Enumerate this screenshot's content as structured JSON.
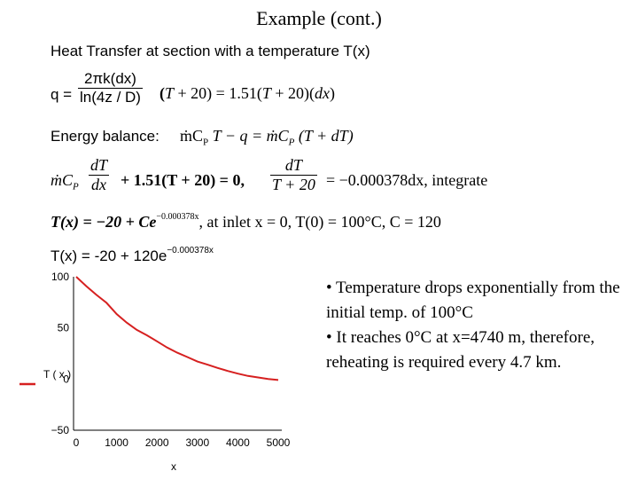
{
  "slide": {
    "title": "Example (cont.)",
    "heading": "Heat Transfer at section with a temperature T(x)",
    "eq_q": {
      "lhs": "q =",
      "num": "2πk(dx)",
      "den": "ln(4z / D)",
      "rhs_open": "(",
      "rhs_T": "T",
      "rhs_mid": " + 20) = 1.51(",
      "rhs_T2": "T",
      "rhs_mid2": " + 20)(",
      "rhs_dx": "dx",
      "rhs_close": ")"
    },
    "energy_balance": {
      "label": "Energy balance:",
      "term1": "ṁC",
      "term1_sub": "P",
      "term2": "T − q = ṁC",
      "term2_sub": "P",
      "term3": "(T + dT)"
    },
    "eq_diff": {
      "lead": "ṁC",
      "lead_sub": "P",
      "num1": "dT",
      "den1": "dx",
      "mid": "+ 1.51(T + 20) = 0,",
      "num2": "dT",
      "den2": "T + 20",
      "rhs": "= −0.000378dx, integrate"
    },
    "eq_solution": {
      "lhs": "T(x) = −20 + Ce",
      "exp": "−0.000378x",
      "rest": ",  at inlet x = 0,  T(0) = 100°C,  C = 120"
    },
    "eq_final": {
      "text": "T(x) = -20 + 120e",
      "exp": "−0.000378x"
    },
    "bullets": [
      "• Temperature drops exponentially from the initial temp. of 100°C",
      "• It reaches 0°C at x=4740 m, therefore, reheating is required every 4.7 km."
    ]
  },
  "chart_data": {
    "type": "line",
    "xlabel": "x",
    "ylabel": "T ( x )",
    "xlim": [
      0,
      5000
    ],
    "ylim": [
      -50,
      100
    ],
    "xticks": [
      "0",
      "1000",
      "2000",
      "3000",
      "4000",
      "5000"
    ],
    "yticks": [
      "100",
      "50",
      "0",
      "−50"
    ],
    "line_color": "#d62020",
    "series": [
      {
        "x": [
          0,
          250,
          500,
          750,
          1000,
          1250,
          1500,
          1750,
          2000,
          2250,
          2500,
          2750,
          3000,
          3250,
          3500,
          3750,
          4000,
          4250,
          4500,
          4750,
          5000
        ],
        "values": [
          100,
          90.8,
          82.3,
          74.5,
          63.6,
          55.2,
          48.1,
          42.8,
          36.9,
          30.8,
          25.8,
          21.5,
          17.1,
          14.1,
          10.9,
          7.9,
          5.3,
          3.1,
          1.6,
          0.1,
          -0.9
        ]
      }
    ]
  }
}
